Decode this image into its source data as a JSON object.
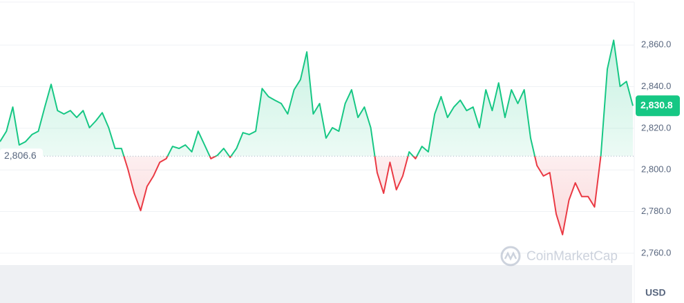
{
  "chart_data": {
    "type": "line",
    "values": [
      2813.6,
      2818.6,
      2830.2,
      2812,
      2813.6,
      2817,
      2818.6,
      2830.2,
      2841.1,
      2828.5,
      2826.9,
      2828.5,
      2825.2,
      2828.5,
      2820.3,
      2823.6,
      2827.5,
      2820.3,
      2810.3,
      2810.3,
      2800.4,
      2788.8,
      2780.5,
      2792.1,
      2797.1,
      2803.7,
      2805.4,
      2811.3,
      2810.3,
      2812,
      2808.7,
      2818.6,
      2812,
      2805.4,
      2807,
      2810.3,
      2806,
      2810.3,
      2817.9,
      2817,
      2818.6,
      2839.1,
      2835.2,
      2833.5,
      2831.9,
      2826.9,
      2838.5,
      2843.4,
      2856.7,
      2826.9,
      2831.9,
      2815.3,
      2820.3,
      2818.6,
      2831.9,
      2838.5,
      2825.2,
      2830.2,
      2820.3,
      2798.7,
      2788.8,
      2803.7,
      2790.5,
      2797.1,
      2808.7,
      2805.4,
      2811.3,
      2808.7,
      2826.9,
      2835.2,
      2825.2,
      2830.2,
      2833.5,
      2828.5,
      2830.2,
      2820.3,
      2838.5,
      2828.5,
      2841.8,
      2825.2,
      2838.5,
      2831.9,
      2838.5,
      2815.3,
      2802.1,
      2797.1,
      2798.7,
      2778.9,
      2768.9,
      2785.5,
      2793.8,
      2787.2,
      2787.2,
      2782.2,
      2807,
      2848.4,
      2862.3,
      2840.1,
      2842.5,
      2830.8
    ],
    "last_label": "2,830.8",
    "baseline": 2806.6,
    "baseline_label": "2,806.6",
    "color_up": "#16c784",
    "color_down": "#ea3943",
    "ylim": [
      2754,
      2872
    ],
    "yticks": [
      {
        "value": 2760,
        "label": "2,760.0"
      },
      {
        "value": 2780,
        "label": "2,780.0"
      },
      {
        "value": 2800,
        "label": "2,800.0"
      },
      {
        "value": 2820,
        "label": "2,820.0"
      },
      {
        "value": 2840,
        "label": "2,840.0"
      },
      {
        "value": 2860,
        "label": "2,860.0"
      }
    ],
    "grid": true,
    "currency": "USD",
    "watermark": "CoinMarketCap"
  }
}
